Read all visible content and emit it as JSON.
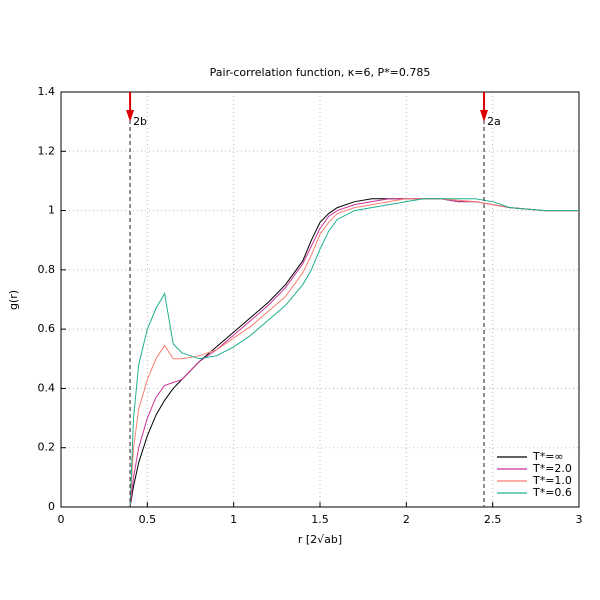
{
  "chart_data": {
    "type": "line",
    "title": "Pair-correlation function, κ=6, P*=0.785",
    "x_label": "r [2√ab]",
    "y_label": "g(r)",
    "x": [
      0.4,
      0.42,
      0.45,
      0.5,
      0.55,
      0.6,
      0.65,
      0.7,
      0.8,
      0.9,
      1.0,
      1.1,
      1.2,
      1.3,
      1.4,
      1.45,
      1.5,
      1.55,
      1.6,
      1.7,
      1.8,
      1.9,
      2.0,
      2.1,
      2.2,
      2.3,
      2.4,
      2.5,
      2.6,
      2.7,
      2.8,
      2.9,
      3.0
    ],
    "series": [
      {
        "name": "T*=∞",
        "color": "#000000",
        "values": [
          0.0,
          0.07,
          0.15,
          0.24,
          0.31,
          0.36,
          0.4,
          0.43,
          0.49,
          0.54,
          0.59,
          0.64,
          0.69,
          0.75,
          0.83,
          0.9,
          0.96,
          0.99,
          1.01,
          1.03,
          1.04,
          1.04,
          1.04,
          1.04,
          1.04,
          1.03,
          1.03,
          1.02,
          1.01,
          1.005,
          1.0,
          1.0,
          1.0
        ]
      },
      {
        "name": "T*=2.0",
        "color": "#cc3399",
        "values": [
          0.0,
          0.1,
          0.2,
          0.3,
          0.37,
          0.41,
          0.42,
          0.43,
          0.49,
          0.53,
          0.58,
          0.63,
          0.68,
          0.74,
          0.82,
          0.88,
          0.94,
          0.98,
          1.0,
          1.02,
          1.03,
          1.04,
          1.04,
          1.04,
          1.04,
          1.03,
          1.03,
          1.02,
          1.01,
          1.005,
          1.0,
          1.0,
          1.0
        ]
      },
      {
        "name": "T*=1.0",
        "color": "#fa8072",
        "values": [
          0.0,
          0.2,
          0.33,
          0.43,
          0.5,
          0.545,
          0.5,
          0.5,
          0.51,
          0.53,
          0.57,
          0.61,
          0.66,
          0.71,
          0.79,
          0.85,
          0.92,
          0.96,
          0.99,
          1.01,
          1.02,
          1.03,
          1.04,
          1.04,
          1.04,
          1.035,
          1.03,
          1.02,
          1.01,
          1.005,
          1.0,
          1.0,
          1.0
        ]
      },
      {
        "name": "T*=0.6",
        "color": "#20b090",
        "values": [
          0.0,
          0.3,
          0.48,
          0.6,
          0.67,
          0.72,
          0.55,
          0.52,
          0.5,
          0.51,
          0.54,
          0.58,
          0.63,
          0.68,
          0.75,
          0.8,
          0.87,
          0.93,
          0.97,
          1.0,
          1.01,
          1.02,
          1.03,
          1.04,
          1.04,
          1.04,
          1.04,
          1.03,
          1.01,
          1.005,
          1.0,
          1.0,
          1.0
        ]
      }
    ],
    "annotations": [
      {
        "x": 0.4,
        "text": "2b"
      },
      {
        "x": 2.45,
        "text": "2a"
      }
    ],
    "annotation_color": "#dd0000",
    "xlim": [
      0,
      3
    ],
    "ylim": [
      0,
      1.4
    ],
    "xticks": [
      0,
      0.5,
      1,
      1.5,
      2,
      2.5,
      3
    ],
    "yticks": [
      0,
      0.2,
      0.4,
      0.6,
      0.8,
      1,
      1.2,
      1.4
    ],
    "grid": true,
    "legend": "lower-right"
  }
}
